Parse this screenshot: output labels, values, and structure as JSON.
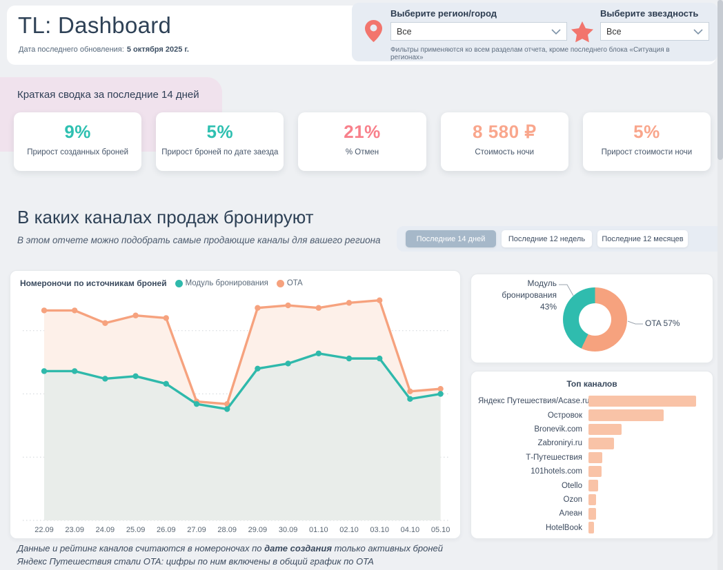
{
  "header": {
    "title": "TL: Dashboard",
    "updated_label": "Дата последнего обновления:",
    "updated_value": "5 октября 2025 г."
  },
  "filters": {
    "region": {
      "label": "Выберите регион/город",
      "value": "Все"
    },
    "stars": {
      "label": "Выберите звездность",
      "value": "Все"
    },
    "note": "Фильтры применяются ко всем разделам отчета, кроме последнего блока «Ситуация в регионах»"
  },
  "summary": {
    "title": "Краткая сводка за последние 14 дней",
    "cards": [
      {
        "value": "9%",
        "label": "Прирост созданных броней",
        "color": "#2fc0b1"
      },
      {
        "value": "5%",
        "label": "Прирост броней по дате заезда",
        "color": "#2fc0b1"
      },
      {
        "value": "21%",
        "label": "% Отмен",
        "color": "#f8808b"
      },
      {
        "value": "8 580 ₽",
        "label": "Стоимость ночи",
        "color": "#f9a68c"
      },
      {
        "value": "5%",
        "label": "Прирост стоимости ночи",
        "color": "#f9a68c"
      }
    ]
  },
  "section": {
    "title": "В каких каналах продаж бронируют",
    "subtitle": "В этом отчете можно подобрать самые продающие каналы для вашего региона",
    "tabs": [
      {
        "label": "Последние 14 дней",
        "active": true
      },
      {
        "label": "Последние 12 недель",
        "active": false
      },
      {
        "label": "Последние 12 месяцев",
        "active": false
      }
    ]
  },
  "chart_data": [
    {
      "type": "line",
      "title": "Номероночи по источникам броней",
      "x": [
        "22.09",
        "23.09",
        "24.09",
        "25.09",
        "26.09",
        "27.09",
        "28.09",
        "29.09",
        "30.09",
        "01.10",
        "02.10",
        "03.10",
        "04.10",
        "05.10"
      ],
      "series": [
        {
          "name": "Модуль бронирования",
          "color": "#2fb9ab",
          "fill": "#e9edea",
          "values": [
            59,
            59,
            56,
            57,
            54,
            46,
            44,
            60,
            62,
            66,
            64,
            64,
            48,
            50
          ]
        },
        {
          "name": "OTA",
          "color": "#f6a27e",
          "fill": "#fdf0e9",
          "values": [
            83,
            83,
            78,
            81,
            80,
            47,
            46,
            84,
            85,
            84,
            86,
            87,
            51,
            52
          ]
        }
      ],
      "ylim": [
        0,
        100
      ],
      "gridlines": [
        0,
        25,
        50,
        75
      ],
      "y_axis": {
        "visible": false,
        "scale": "relative, no tick labels shown"
      },
      "legend_position": "top"
    },
    {
      "type": "pie",
      "donut": true,
      "labels": [
        "Модуль бронирования",
        "OTA"
      ],
      "values": [
        43,
        57
      ],
      "colors": [
        "#2fbcae",
        "#f6a27e"
      ],
      "callouts": {
        "left_line1": "Модуль бронирования",
        "left_line2": "43%",
        "right": "OTA 57%"
      }
    },
    {
      "type": "bar",
      "orientation": "horizontal",
      "title": "Топ каналов",
      "categories": [
        "Яндекс Путешествия/Acase.ru",
        "Островок",
        "Bronevik.com",
        "Zabroniryi.ru",
        "Т-Путешествия",
        "101hotels.com",
        "Otello",
        "Ozon",
        "Алеан",
        "HotelBook"
      ],
      "values": [
        100,
        70,
        31,
        24,
        13,
        12,
        9,
        7,
        7,
        5
      ],
      "values_note": "relative lengths, max = 100; chart shows no numeric labels",
      "color": "#f9c3a7"
    }
  ],
  "footer": {
    "line1_prefix": "Данные и рейтинг каналов считаются в номероночах по ",
    "line1_bold": "дате создания",
    "line1_suffix": " только активных броней",
    "line2": "Яндекс Путешествия стали OTA: цифры по ним включены в общий график по OTA"
  },
  "colors": {
    "teal": "#2fc0b1",
    "salmon": "#f9a68c",
    "red_pink": "#f8808b",
    "accent_coral": "#f2756d",
    "pink_panel": "#f0e2ed",
    "filter_panel": "#e7ecf3",
    "tab_active": "#a6b8c9"
  }
}
